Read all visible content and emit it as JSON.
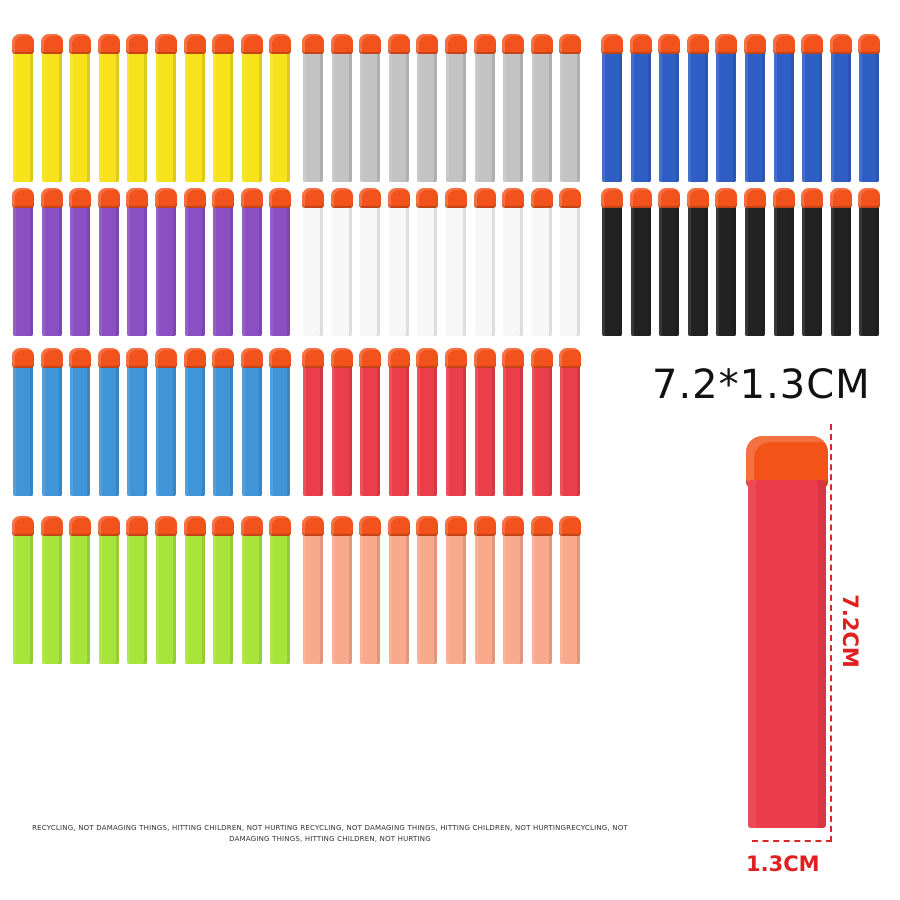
{
  "product": {
    "size_label": "7.2*1.3CM",
    "length_label": "7.2CM",
    "width_label": "1.3CM",
    "caption": "RECYCLING, NOT DAMAGING THINGS, HITTING CHILDREN, NOT HURTING RECYCLING, NOT DAMAGING THINGS, HITTING CHILDREN, NOT HURTINGRECYCLING, NOT DAMAGING THINGS, HITTING CHILDREN, NOT HURTING"
  },
  "colors": {
    "tip": "#f2521b",
    "accent_red": "#d62828"
  },
  "dart_groups": [
    {
      "color_name": "yellow",
      "color": "#f7e21c",
      "count": 10
    },
    {
      "color_name": "gray",
      "color": "#c3c3c3",
      "count": 10
    },
    {
      "color_name": "blue",
      "color": "#2f5fc4",
      "count": 10
    },
    {
      "color_name": "purple",
      "color": "#8a4fc2",
      "count": 10
    },
    {
      "color_name": "white",
      "color": "#f7f7f7",
      "count": 10
    },
    {
      "color_name": "black",
      "color": "#222222",
      "count": 10
    },
    {
      "color_name": "sky-blue",
      "color": "#3f95d8",
      "count": 10
    },
    {
      "color_name": "red",
      "color": "#ea3e4a",
      "count": 10
    },
    {
      "color_name": "lime-green",
      "color": "#a8e43a",
      "count": 10
    },
    {
      "color_name": "peach",
      "color": "#f9aa8c",
      "count": 10
    }
  ]
}
